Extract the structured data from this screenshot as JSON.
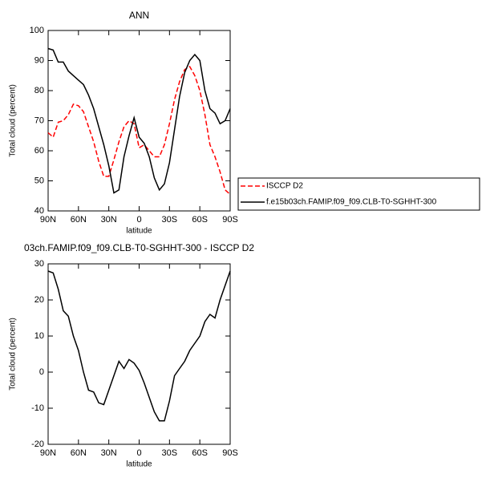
{
  "chart_data": [
    {
      "type": "line",
      "title": "ANN",
      "x_label": "latitude",
      "y_label": "Total cloud (percent)",
      "x": [
        90,
        85,
        80,
        75,
        70,
        65,
        60,
        55,
        50,
        45,
        40,
        35,
        30,
        25,
        20,
        15,
        10,
        5,
        0,
        -5,
        -10,
        -15,
        -20,
        -25,
        -30,
        -35,
        -40,
        -45,
        -50,
        -55,
        -60,
        -65,
        -70,
        -75,
        -80,
        -85,
        -90
      ],
      "xlim": [
        90,
        -90
      ],
      "xticks": [
        {
          "value": 90,
          "label": "90N"
        },
        {
          "value": 60,
          "label": "60N"
        },
        {
          "value": 30,
          "label": "30N"
        },
        0,
        {
          "value": -30,
          "label": "30S"
        },
        {
          "value": -60,
          "label": "60S"
        },
        {
          "value": -90,
          "label": "90S"
        }
      ],
      "ylim": [
        40,
        100
      ],
      "yticks": [
        40,
        50,
        60,
        70,
        80,
        90,
        100
      ],
      "legend": "right",
      "series": [
        {
          "name": "ISCCP D2",
          "color": "#ff0000",
          "line_style": "dashed",
          "values": [
            66,
            64.5,
            69.5,
            70,
            72,
            75.5,
            75,
            73,
            68,
            63,
            56.5,
            51.5,
            51.5,
            57,
            63,
            68,
            70,
            69,
            61,
            62,
            60,
            58,
            58,
            62,
            69,
            77,
            83,
            87,
            88,
            85,
            80,
            72,
            62,
            58,
            53,
            47,
            45.5
          ]
        },
        {
          "name": "f.e15b03ch.FAMIP.f09_f09.CLB-T0-SGHHT-300",
          "color": "#000000",
          "line_style": "solid",
          "values": [
            94,
            93.5,
            89.5,
            89.5,
            86.5,
            85,
            83.5,
            82,
            78.5,
            74,
            68,
            62,
            55,
            46,
            47,
            58,
            65,
            71,
            64.5,
            62.5,
            58,
            51,
            47,
            49,
            56,
            67,
            78,
            86,
            90,
            92,
            90,
            80,
            74,
            72.5,
            69,
            70,
            74
          ]
        }
      ]
    },
    {
      "type": "line",
      "title": "03ch.FAMIP.f09_f09.CLB-T0-SGHHT-300 - ISCCP D2",
      "x_label": "latitude",
      "y_label": "Total cloud (percent)",
      "x": [
        90,
        85,
        80,
        75,
        70,
        65,
        60,
        55,
        50,
        45,
        40,
        35,
        30,
        25,
        20,
        15,
        10,
        5,
        0,
        -5,
        -10,
        -15,
        -20,
        -25,
        -30,
        -35,
        -40,
        -45,
        -50,
        -55,
        -60,
        -65,
        -70,
        -75,
        -80,
        -85,
        -90
      ],
      "xlim": [
        90,
        -90
      ],
      "xticks": [
        {
          "value": 90,
          "label": "90N"
        },
        {
          "value": 60,
          "label": "60N"
        },
        {
          "value": 30,
          "label": "30N"
        },
        0,
        {
          "value": -30,
          "label": "30S"
        },
        {
          "value": -60,
          "label": "60S"
        },
        {
          "value": -90,
          "label": "90S"
        }
      ],
      "ylim": [
        -20,
        30
      ],
      "yticks": [
        -20,
        -10,
        0,
        10,
        20,
        30
      ],
      "series": [
        {
          "color": "#000000",
          "line_style": "solid",
          "values": [
            28,
            27.5,
            23,
            17,
            15.5,
            10,
            6,
            0,
            -5,
            -5.5,
            -8.5,
            -9,
            -5,
            -1,
            3,
            1,
            3.5,
            2.5,
            0.5,
            -3,
            -7,
            -11,
            -13.5,
            -13.5,
            -8,
            -1,
            1,
            3,
            6,
            8,
            10,
            14,
            16,
            15,
            20,
            24,
            28
          ]
        }
      ]
    }
  ]
}
